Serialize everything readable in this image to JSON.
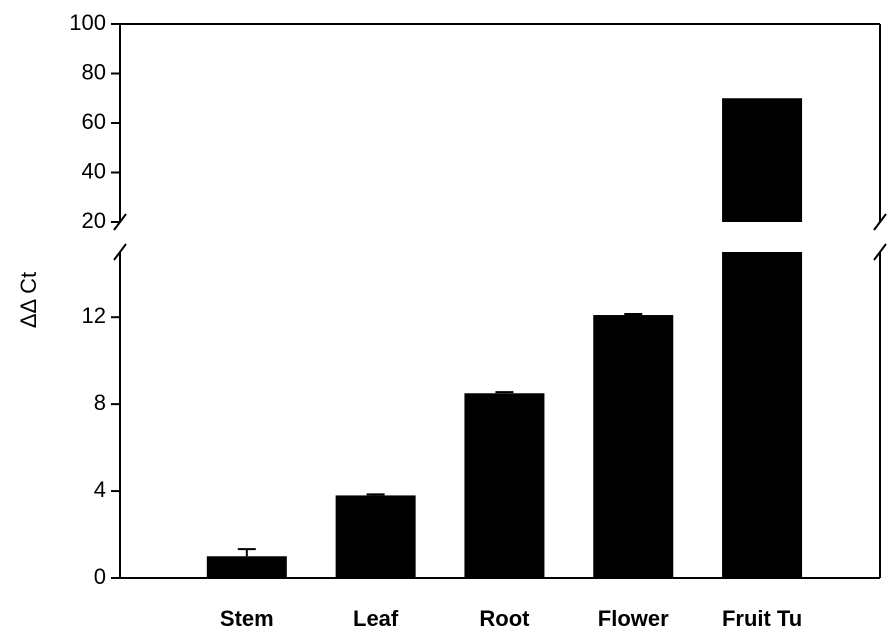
{
  "chart_data": {
    "type": "bar",
    "y_label": "ΔΔ Ct",
    "categories": [
      "Stem",
      "Leaf",
      "Root",
      "Flower",
      "Fruit Tu"
    ],
    "values": [
      1.0,
      3.8,
      8.5,
      12.1,
      70
    ],
    "errors": [
      0.33,
      0.05,
      0.05,
      0.05,
      0
    ],
    "color": "#000000",
    "ylim_lower": [
      0,
      15
    ],
    "yticks_lower": [
      0,
      4,
      8,
      12
    ],
    "ylim_upper": [
      20,
      100
    ],
    "yticks_upper": [
      20,
      40,
      60,
      80,
      100
    ]
  }
}
